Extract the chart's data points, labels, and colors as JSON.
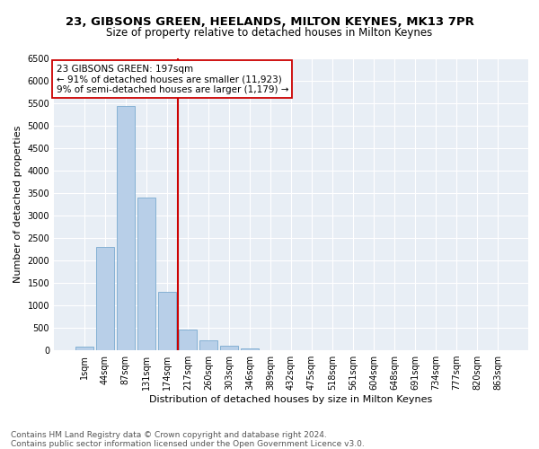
{
  "title1": "23, GIBSONS GREEN, HEELANDS, MILTON KEYNES, MK13 7PR",
  "title2": "Size of property relative to detached houses in Milton Keynes",
  "xlabel": "Distribution of detached houses by size in Milton Keynes",
  "ylabel": "Number of detached properties",
  "footer1": "Contains HM Land Registry data © Crown copyright and database right 2024.",
  "footer2": "Contains public sector information licensed under the Open Government Licence v3.0.",
  "bar_labels": [
    "1sqm",
    "44sqm",
    "87sqm",
    "131sqm",
    "174sqm",
    "217sqm",
    "260sqm",
    "303sqm",
    "346sqm",
    "389sqm",
    "432sqm",
    "475sqm",
    "518sqm",
    "561sqm",
    "604sqm",
    "648sqm",
    "691sqm",
    "734sqm",
    "777sqm",
    "820sqm",
    "863sqm"
  ],
  "bar_values": [
    75,
    2300,
    5450,
    3400,
    1300,
    470,
    220,
    95,
    45,
    0,
    0,
    0,
    0,
    0,
    0,
    0,
    0,
    0,
    0,
    0,
    0
  ],
  "bar_color": "#b8cfe8",
  "bar_edge_color": "#7aaad0",
  "vline_color": "#cc0000",
  "annotation_title": "23 GIBSONS GREEN: 197sqm",
  "annotation_line1": "← 91% of detached houses are smaller (11,923)",
  "annotation_line2": "9% of semi-detached houses are larger (1,179) →",
  "annotation_box_color": "#ffffff",
  "annotation_box_edge": "#cc0000",
  "bg_color": "#e8eef5",
  "ylim": [
    0,
    6500
  ],
  "yticks": [
    0,
    500,
    1000,
    1500,
    2000,
    2500,
    3000,
    3500,
    4000,
    4500,
    5000,
    5500,
    6000,
    6500
  ],
  "grid_color": "#ffffff",
  "title_fontsize": 9.5,
  "subtitle_fontsize": 8.5,
  "axis_label_fontsize": 8,
  "tick_fontsize": 7,
  "annotation_fontsize": 7.5,
  "footer_fontsize": 6.5
}
